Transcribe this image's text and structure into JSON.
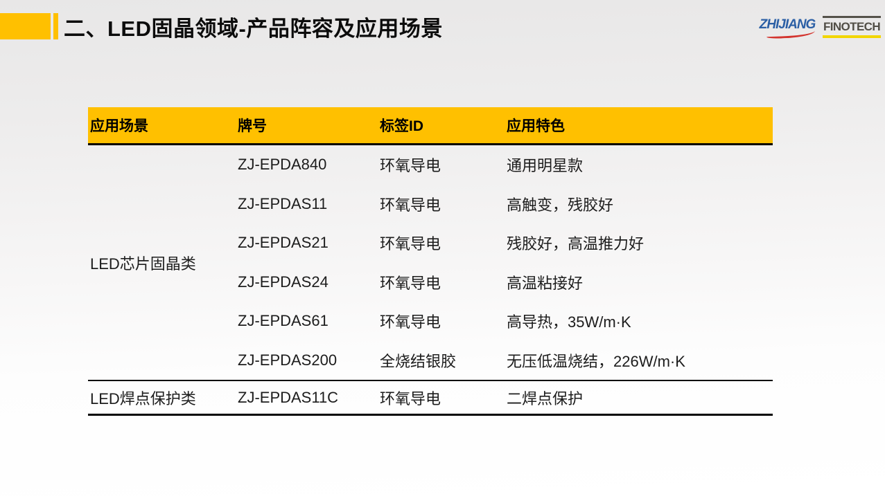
{
  "slide": {
    "title": "二、LED固晶领域-产品阵容及应用场景",
    "logos": {
      "zhijiang": "ZHIJIANG",
      "finotech": "FINOTECH"
    },
    "colors": {
      "accent_yellow": "#FFC000",
      "logo_blue": "#2B5FA5",
      "logo_red": "#D3342E",
      "logo_gray": "#514E46",
      "logo_underline_yellow": "#F2D600"
    }
  },
  "table": {
    "headers": {
      "scene": "应用场景",
      "model": "牌号",
      "tag": "标签ID",
      "feature": "应用特色"
    },
    "groups": [
      {
        "category": "LED芯片固晶类",
        "rows": [
          {
            "model": "ZJ-EPDA840",
            "tag": "环氧导电",
            "feature": "通用明星款"
          },
          {
            "model": "ZJ-EPDAS11",
            "tag": "环氧导电",
            "feature": "高触变，残胶好"
          },
          {
            "model": "ZJ-EPDAS21",
            "tag": "环氧导电",
            "feature": "残胶好，高温推力好"
          },
          {
            "model": "ZJ-EPDAS24",
            "tag": "环氧导电",
            "feature": "高温粘接好"
          },
          {
            "model": "ZJ-EPDAS61",
            "tag": "环氧导电",
            "feature": "高导热，35W/m·K"
          },
          {
            "model": "ZJ-EPDAS200",
            "tag": "全烧结银胶",
            "feature": "无压低温烧结，226W/m·K"
          }
        ]
      },
      {
        "category": "LED焊点保护类",
        "rows": [
          {
            "model": "ZJ-EPDAS11C",
            "tag": "环氧导电",
            "feature": "二焊点保护"
          }
        ]
      }
    ]
  }
}
